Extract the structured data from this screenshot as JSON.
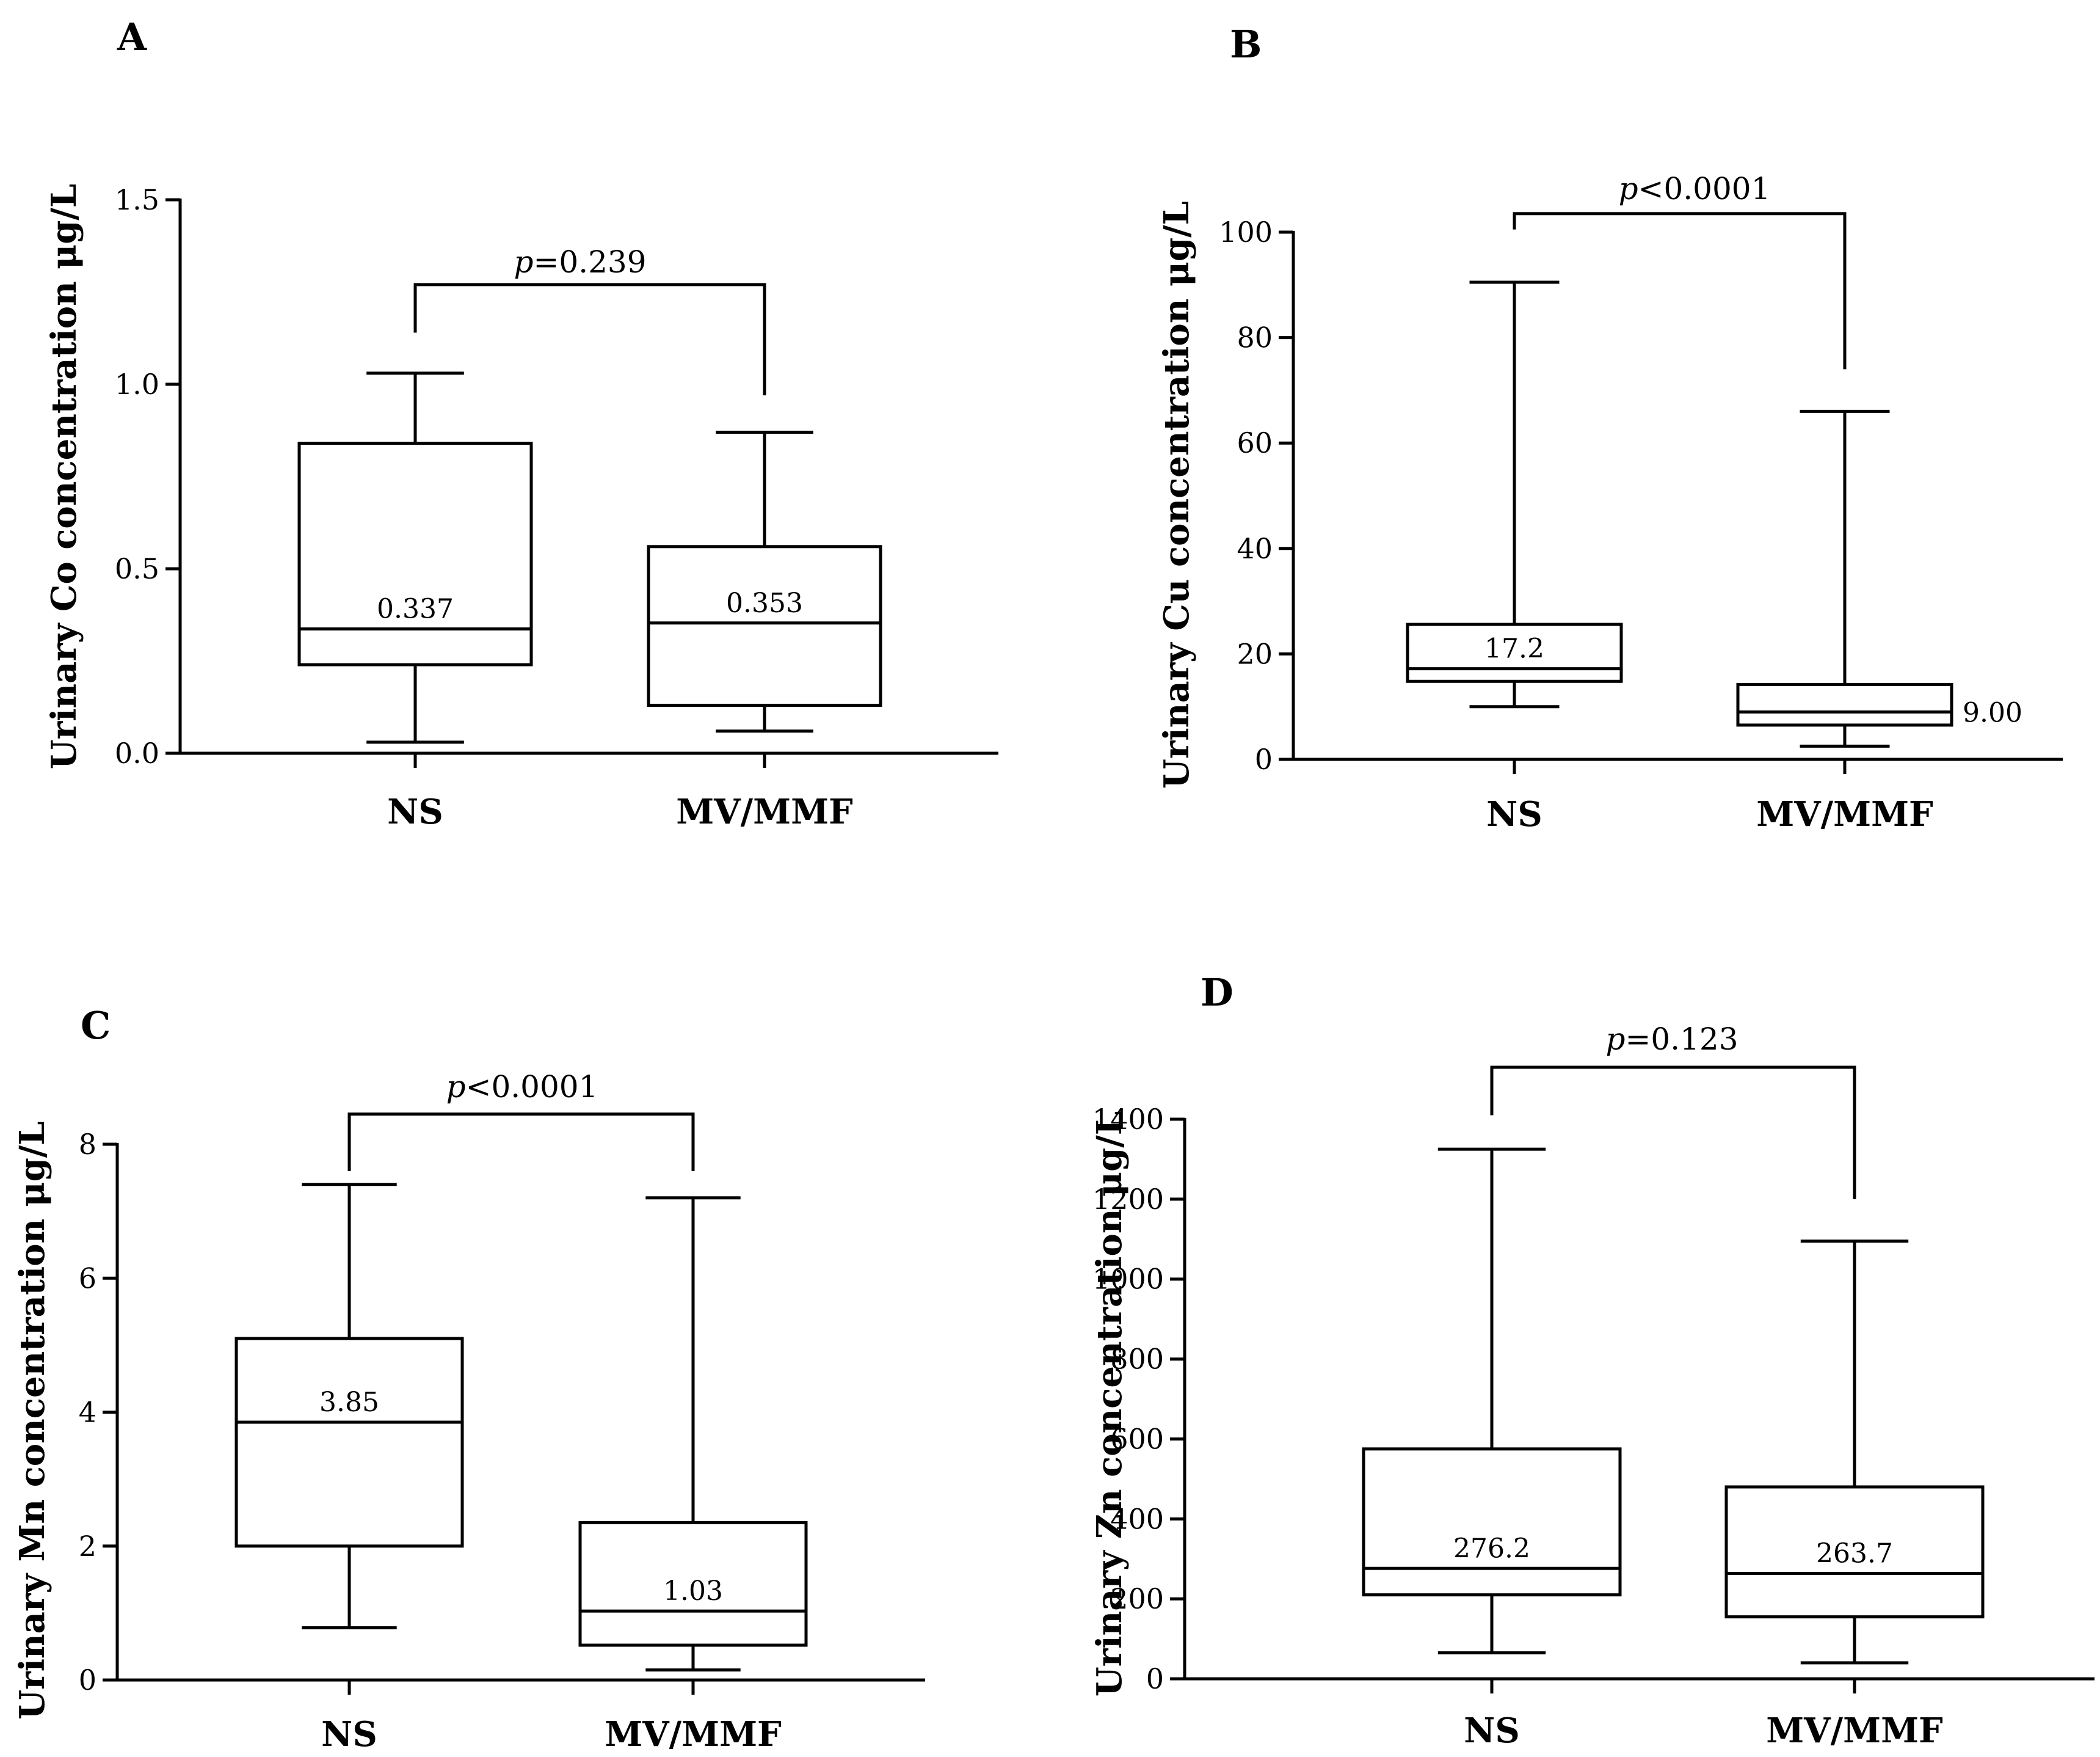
{
  "figure_title": "",
  "chart_data": [
    {
      "panel": "A",
      "type": "box",
      "title": "",
      "xlabel": "",
      "ylabel": "Urinary Co concentration μg/L",
      "categories": [
        "NS",
        "MV/MMF"
      ],
      "ylim": [
        0,
        1.5
      ],
      "yticks": [
        "0.0",
        "0.5",
        "1.0",
        "1.5"
      ],
      "yticks_values": [
        0,
        0.5,
        1.0,
        1.5
      ],
      "boxes": [
        {
          "name": "NS",
          "min": 0.03,
          "q1": 0.24,
          "median": 0.337,
          "q3": 0.84,
          "max": 1.03,
          "median_label": "0.337"
        },
        {
          "name": "MV/MMF",
          "min": 0.06,
          "q1": 0.13,
          "median": 0.353,
          "q3": 0.56,
          "max": 0.87,
          "median_label": "0.353"
        }
      ],
      "comparison": {
        "p_symbol": "p",
        "p_text": "=0.239",
        "bracket_y": 1.27,
        "left_end": 1.14,
        "right_end": 0.97
      }
    },
    {
      "panel": "B",
      "type": "box",
      "title": "",
      "xlabel": "",
      "ylabel": "Urinary Cu concentration μg/L",
      "categories": [
        "NS",
        "MV/MMF"
      ],
      "ylim": [
        0,
        100
      ],
      "yticks": [
        "0",
        "20",
        "40",
        "60",
        "80",
        "100"
      ],
      "yticks_values": [
        0,
        20,
        40,
        60,
        80,
        100
      ],
      "boxes": [
        {
          "name": "NS",
          "min": 10,
          "q1": 14.8,
          "median": 17.2,
          "q3": 25.6,
          "max": 90.5,
          "median_label": "17.2"
        },
        {
          "name": "MV/MMF",
          "min": 2.5,
          "q1": 6.5,
          "median": 9.0,
          "q3": 14.2,
          "max": 66,
          "median_label": "9.00"
        }
      ],
      "comparison": {
        "p_symbol": "p",
        "p_text": "<0.0001",
        "bracket_y": 103.5,
        "left_end": 100.5,
        "right_end": 74
      }
    },
    {
      "panel": "C",
      "type": "box",
      "title": "",
      "xlabel": "",
      "ylabel": "Urinary Mn concentration μg/L",
      "categories": [
        "NS",
        "MV/MMF"
      ],
      "ylim": [
        0,
        8
      ],
      "yticks": [
        "0",
        "2",
        "4",
        "6",
        "8"
      ],
      "yticks_values": [
        0,
        2,
        4,
        6,
        8
      ],
      "boxes": [
        {
          "name": "NS",
          "min": 0.78,
          "q1": 2.0,
          "median": 3.85,
          "q3": 5.1,
          "max": 7.4,
          "median_label": "3.85"
        },
        {
          "name": "MV/MMF",
          "min": 0.15,
          "q1": 0.52,
          "median": 1.03,
          "q3": 2.35,
          "max": 7.2,
          "median_label": "1.03"
        }
      ],
      "comparison": {
        "p_symbol": "p",
        "p_text": "<0.0001",
        "bracket_y": 8.45,
        "left_end": 7.6,
        "right_end": 7.6
      }
    },
    {
      "panel": "D",
      "type": "box",
      "title": "",
      "xlabel": "",
      "ylabel": "Urinary Zn concentration μg/L",
      "categories": [
        "NS",
        "MV/MMF"
      ],
      "ylim": [
        0,
        1400
      ],
      "yticks": [
        "0",
        "200",
        "400",
        "600",
        "800",
        "1000",
        "1200",
        "1400"
      ],
      "yticks_values": [
        0,
        200,
        400,
        600,
        800,
        1000,
        1200,
        1400
      ],
      "boxes": [
        {
          "name": "NS",
          "min": 65,
          "q1": 210,
          "median": 276.2,
          "q3": 575,
          "max": 1325,
          "median_label": "276.2"
        },
        {
          "name": "MV/MMF",
          "min": 40,
          "q1": 155,
          "median": 263.7,
          "q3": 480,
          "max": 1095,
          "median_label": "263.7"
        }
      ],
      "comparison": {
        "p_symbol": "p",
        "p_text": "=0.123",
        "bracket_y": 1530,
        "left_end": 1410,
        "right_end": 1200
      }
    }
  ]
}
